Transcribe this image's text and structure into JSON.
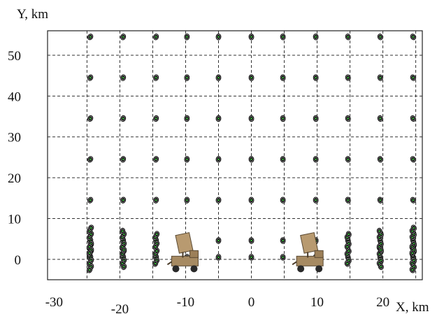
{
  "chart_data": {
    "type": "scatter",
    "xlabel": "X, km",
    "ylabel": "Y, km",
    "x_ticks": [
      -30,
      -20,
      -10,
      0,
      10,
      20
    ],
    "y_ticks": [
      0,
      10,
      20,
      30,
      40,
      50
    ],
    "xlim": [
      -31,
      26
    ],
    "ylim": [
      -5,
      56
    ],
    "grid": true,
    "grid_x": [
      -25,
      -20,
      -15,
      -10,
      -5,
      0,
      5,
      10,
      15,
      20,
      25
    ],
    "grid_y": [
      0,
      10,
      20,
      30,
      40,
      50
    ],
    "series": [
      {
        "points_x": [
          -24.5,
          -19.5,
          -14.5,
          -9.8,
          -5,
          0,
          4.8,
          9.8,
          14.7,
          19.6,
          24.6
        ],
        "points_y": [
          0,
          5,
          10,
          20,
          30,
          40,
          50
        ]
      }
    ],
    "scatter_columns": {
      "x": [
        -24.5,
        -19.5,
        -14.5,
        -9.8,
        -5,
        0,
        4.8,
        9.8,
        14.7,
        19.6,
        24.6
      ],
      "rows_y": [
        0.5,
        4.6,
        14.5,
        24.5,
        34.5,
        44.5,
        54.5
      ]
    },
    "markers": [
      {
        "icon": "radar-vehicle-icon",
        "x": -10,
        "y": -3
      },
      {
        "icon": "radar-vehicle-icon",
        "x": 9,
        "y": -3
      }
    ],
    "colors": {
      "point_core": "#1b1b1b",
      "point_center": "#39d23a",
      "point_ring": "#111111",
      "grid": "#333333"
    }
  }
}
